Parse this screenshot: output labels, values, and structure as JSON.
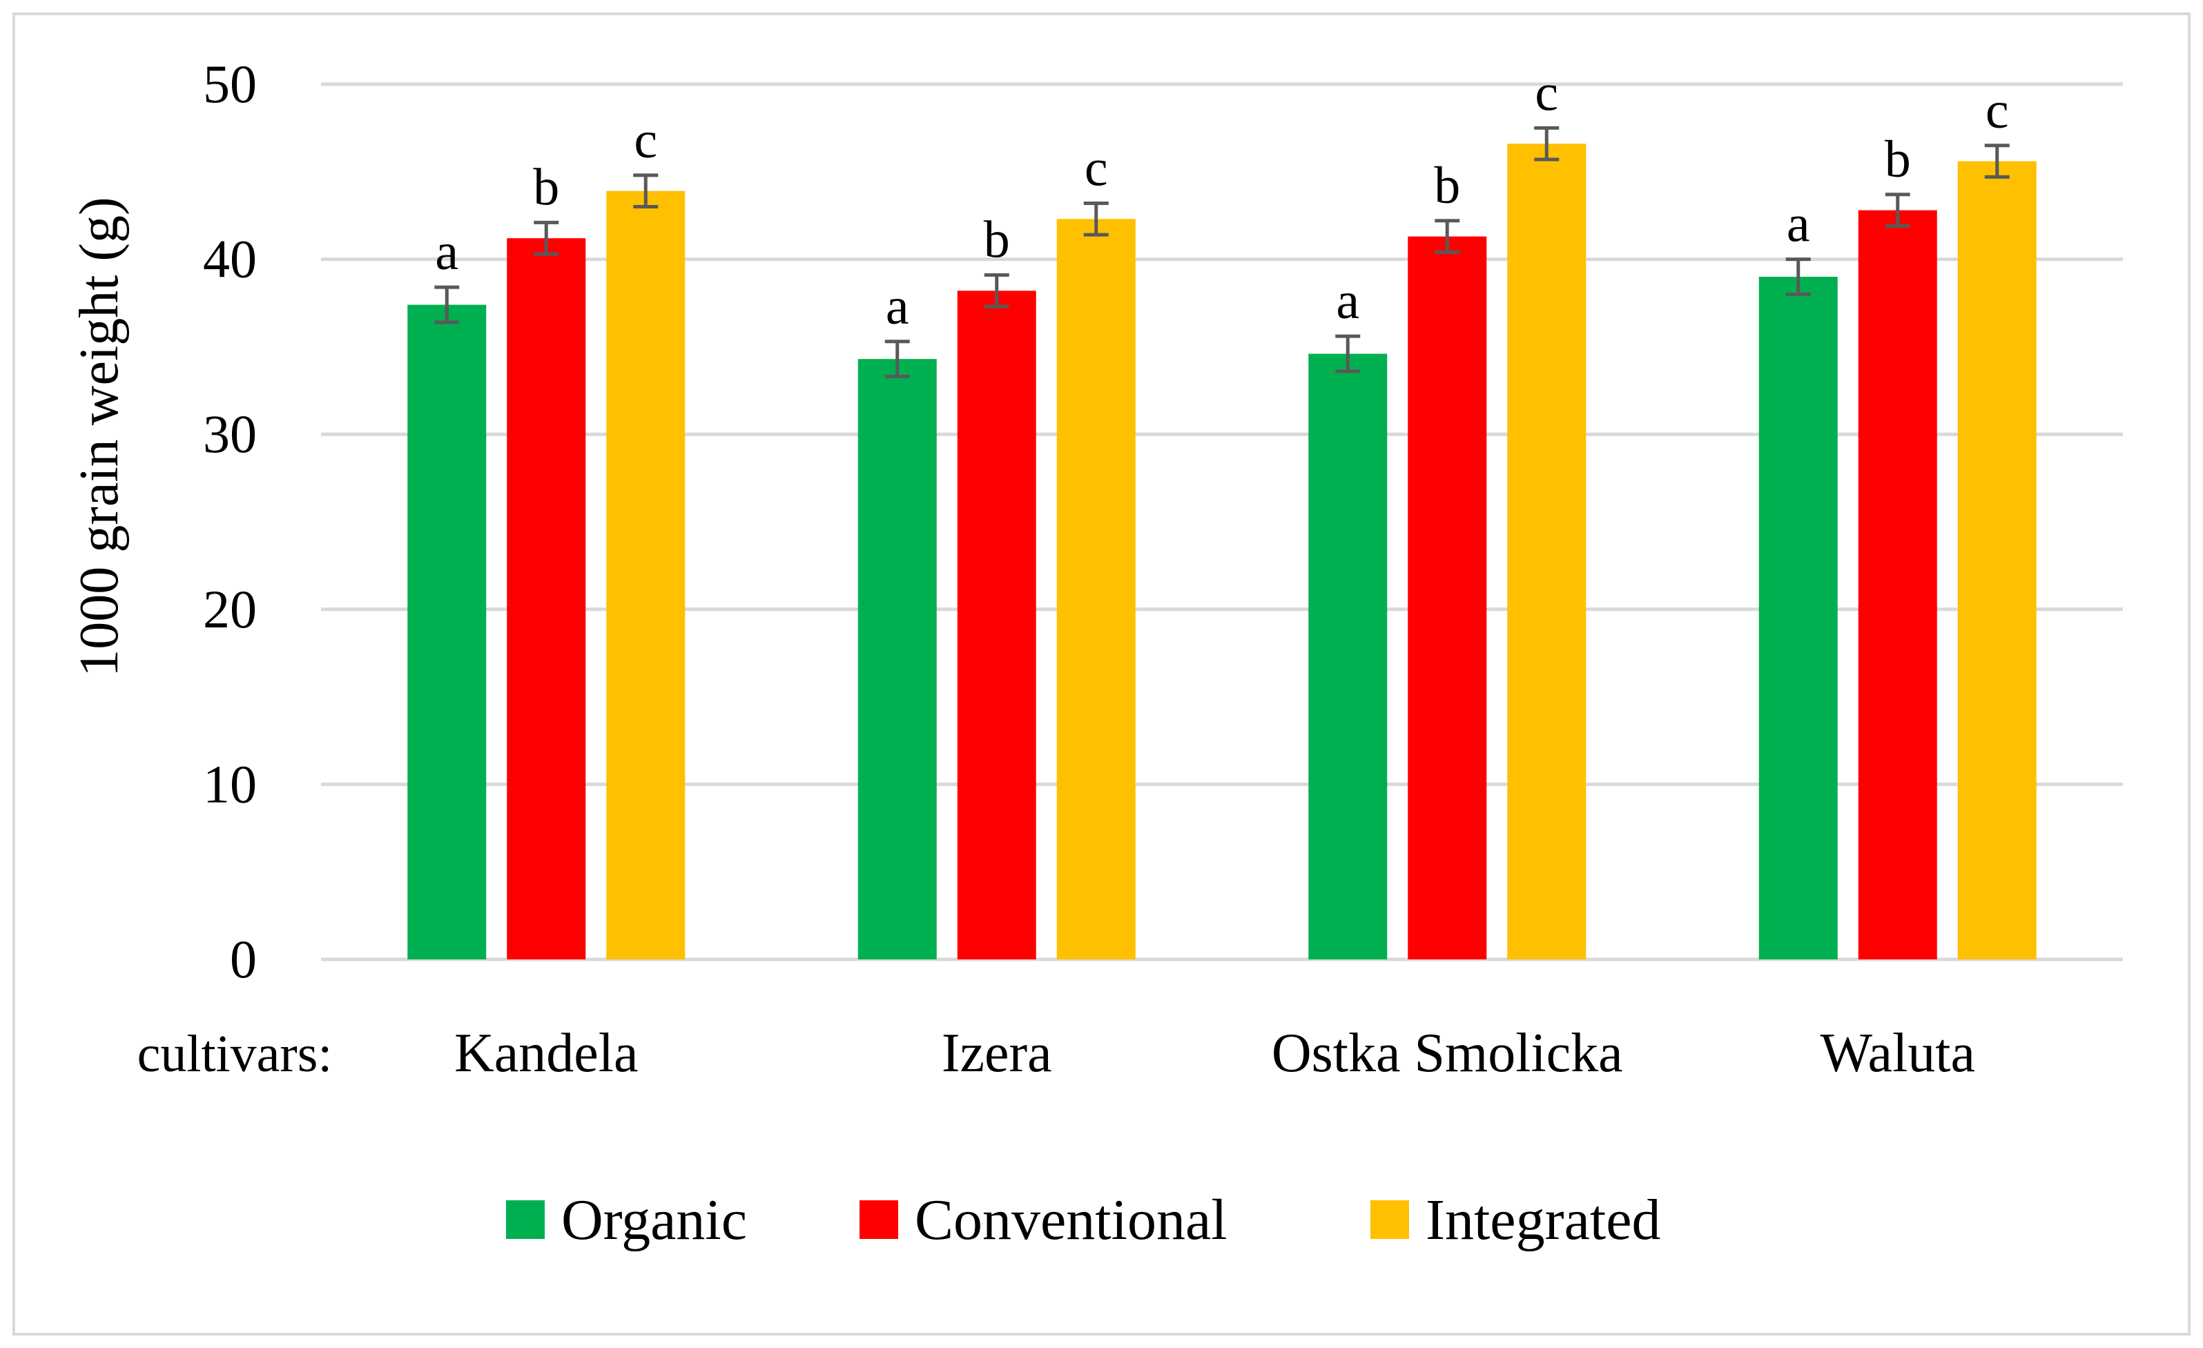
{
  "chart_data": {
    "type": "bar",
    "title": "",
    "xlabel": "cultivars:",
    "ylabel": "1000 grain weight (g)",
    "ylim": [
      0,
      50
    ],
    "yticks": [
      0,
      10,
      20,
      30,
      40,
      50
    ],
    "ytick_labels": [
      "0",
      "10",
      "20",
      "30",
      "40",
      "50"
    ],
    "grid": true,
    "legend_position": "bottom",
    "categories": [
      "Kandela",
      "Izera",
      "Ostka Smolicka",
      "Waluta"
    ],
    "series": [
      {
        "name": "Organic",
        "color": "#00b050",
        "values": [
          37.4,
          34.3,
          34.6,
          39.0
        ],
        "errors": [
          1.0,
          1.0,
          1.0,
          1.0
        ],
        "letters": [
          "a",
          "a",
          "a",
          "a"
        ]
      },
      {
        "name": "Conventional",
        "color": "#ff0000",
        "values": [
          41.2,
          38.2,
          41.3,
          42.8
        ],
        "errors": [
          0.9,
          0.9,
          0.9,
          0.9
        ],
        "letters": [
          "b",
          "b",
          "b",
          "b"
        ]
      },
      {
        "name": "Integrated",
        "color": "#ffc000",
        "values": [
          43.9,
          42.3,
          46.6,
          45.6
        ],
        "errors": [
          0.9,
          0.9,
          0.9,
          0.9
        ],
        "letters": [
          "c",
          "c",
          "c",
          "c"
        ]
      }
    ],
    "gridline_color": "#d9d9d9",
    "error_bar_color": "#595959"
  }
}
